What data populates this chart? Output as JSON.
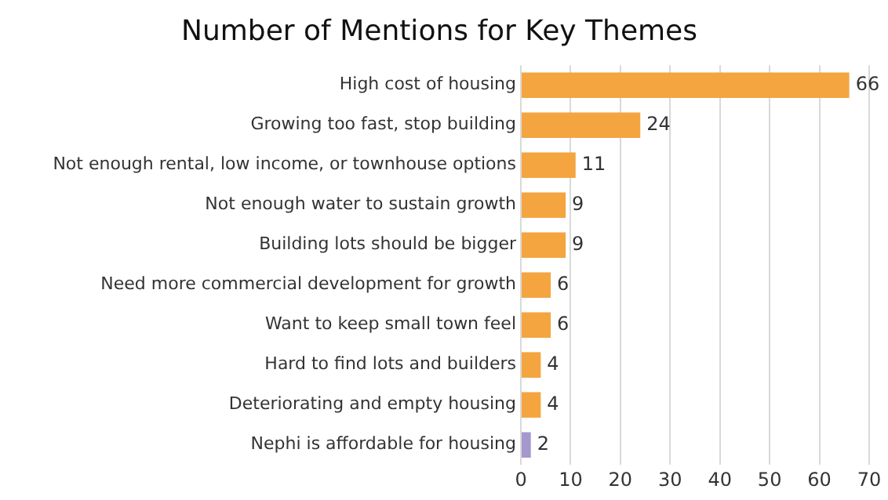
{
  "chart_data": {
    "type": "bar",
    "title": "Number of Mentions for Key Themes",
    "orientation": "horizontal",
    "categories": [
      "High cost of housing",
      "Growing too fast, stop building",
      "Not enough rental, low income, or townhouse options",
      "Not enough water to sustain growth",
      "Building lots should be bigger",
      "Need more commercial development for growth",
      "Want to keep small town feel",
      "Hard to find lots and builders",
      "Deteriorating and empty housing",
      "Nephi is affordable for housing"
    ],
    "values": [
      66,
      24,
      11,
      9,
      9,
      6,
      6,
      4,
      4,
      2
    ],
    "colors": [
      "#f4a540",
      "#f4a540",
      "#f4a540",
      "#f4a540",
      "#f4a540",
      "#f4a540",
      "#f4a540",
      "#f4a540",
      "#f4a540",
      "#a498cc"
    ],
    "xlim": [
      0,
      70
    ],
    "xticks": [
      0,
      10,
      20,
      30,
      40,
      50,
      60,
      70
    ],
    "grid": "x",
    "data_labels": true
  }
}
